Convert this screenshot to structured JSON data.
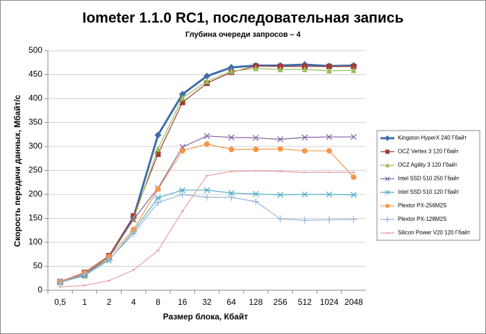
{
  "chart_data": {
    "type": "line",
    "title": "Iometer 1.1.0 RC1, последовательная запись",
    "subtitle": "Глубина очереди запросов – 4",
    "x_label": "Размер блока, Кбайт",
    "y_label": "Скорость передачи данных, Мбайт/с",
    "categories": [
      "0,5",
      "1",
      "2",
      "4",
      "8",
      "16",
      "32",
      "64",
      "128",
      "256",
      "512",
      "1024",
      "2048"
    ],
    "ylim": [
      0,
      500
    ],
    "yticks": [
      0,
      50,
      100,
      150,
      200,
      250,
      300,
      350,
      400,
      450,
      500
    ],
    "grid": true,
    "legend": "right",
    "series": [
      {
        "name": "Kingston HyperX  240 Гбайт",
        "color": "#3f6ea8",
        "marker": "diamond",
        "width": 3,
        "values": [
          17,
          35,
          70,
          152,
          324,
          409,
          447,
          465,
          469,
          469,
          471,
          468,
          469
        ]
      },
      {
        "name": "OCZ Vertex  3 120 Гбайт",
        "color": "#a23b35",
        "marker": "square",
        "width": 1.2,
        "values": [
          18,
          37,
          72,
          155,
          284,
          392,
          432,
          455,
          468,
          467,
          467,
          467,
          467
        ]
      },
      {
        "name": "OCZ Agility  3 120 Гбайт",
        "color": "#9bbb59",
        "marker": "triangle",
        "width": 1.2,
        "values": [
          17,
          30,
          68,
          148,
          295,
          401,
          436,
          457,
          463,
          461,
          461,
          458,
          459
        ]
      },
      {
        "name": "Intel  SSD 510 250 Гбайт",
        "color": "#7f5fa3",
        "marker": "x",
        "width": 1.2,
        "values": [
          18,
          33,
          70,
          148,
          213,
          299,
          322,
          319,
          318,
          315,
          319,
          320,
          320
        ]
      },
      {
        "name": "Intel  SSD 510 120 Гбайт",
        "color": "#4bacc6",
        "marker": "star",
        "width": 1.2,
        "values": [
          16,
          31,
          63,
          123,
          193,
          209,
          209,
          203,
          201,
          199,
          200,
          200,
          199
        ]
      },
      {
        "name": "Plextor PX-256M2S",
        "color": "#f79646",
        "marker": "circle",
        "width": 1.2,
        "values": [
          18,
          36,
          70,
          127,
          211,
          291,
          305,
          294,
          294,
          295,
          291,
          291,
          236
        ]
      },
      {
        "name": "Plextor PX-128M2S",
        "color": "#95b3d7",
        "marker": "plus",
        "width": 1.2,
        "values": [
          16,
          33,
          64,
          118,
          183,
          200,
          194,
          194,
          185,
          149,
          146,
          147,
          148
        ]
      },
      {
        "name": "Silicon Power  V20 120 Гбайт",
        "color": "#e6a0a0",
        "marker": "dash",
        "width": 1.2,
        "values": [
          7,
          10,
          20,
          42,
          83,
          165,
          239,
          248,
          249,
          248,
          246,
          246,
          246
        ]
      }
    ]
  }
}
